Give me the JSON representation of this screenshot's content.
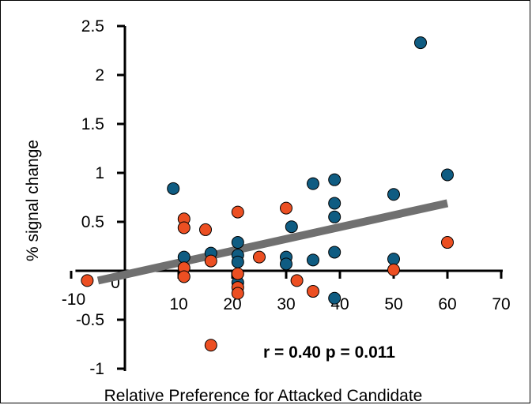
{
  "chart_data": {
    "type": "scatter",
    "title": "",
    "xlabel": "Relative Preference for Attacked Candidate",
    "ylabel": "% signal change",
    "xlim": [
      -10,
      70
    ],
    "ylim": [
      -1,
      2.5
    ],
    "xticks": [
      -10,
      0,
      10,
      20,
      30,
      40,
      50,
      60,
      70
    ],
    "xtick_labels": [
      "-10",
      "0",
      "10",
      "20",
      "30",
      "40",
      "50",
      "60",
      "70"
    ],
    "yticks": [
      -1,
      -0.5,
      0,
      0.5,
      1,
      1.5,
      2,
      2.5
    ],
    "ytick_labels": [
      "-1",
      "-0.5",
      "0",
      "0.5",
      "1",
      "1.5",
      "2",
      "2.5"
    ],
    "grid": false,
    "legend": "none",
    "annotation": "r = 0.40 p = 0.011",
    "series": [
      {
        "color": "#0f5c82",
        "points": [
          {
            "x": 9,
            "y": 0.84
          },
          {
            "x": 11,
            "y": 0.14
          },
          {
            "x": 16,
            "y": 0.18
          },
          {
            "x": 21,
            "y": 0.29
          },
          {
            "x": 21,
            "y": 0.16
          },
          {
            "x": 21,
            "y": 0.09
          },
          {
            "x": 21,
            "y": -0.12
          },
          {
            "x": 30,
            "y": 0.14
          },
          {
            "x": 30,
            "y": 0.07
          },
          {
            "x": 31,
            "y": 0.45
          },
          {
            "x": 35,
            "y": 0.11
          },
          {
            "x": 35,
            "y": 0.89
          },
          {
            "x": 39,
            "y": 0.93
          },
          {
            "x": 39,
            "y": 0.69
          },
          {
            "x": 39,
            "y": 0.55
          },
          {
            "x": 39,
            "y": 0.19
          },
          {
            "x": 39,
            "y": -0.28
          },
          {
            "x": 50,
            "y": 0.78
          },
          {
            "x": 50,
            "y": 0.12
          },
          {
            "x": 55,
            "y": 2.33
          },
          {
            "x": 60,
            "y": 0.98
          }
        ]
      },
      {
        "color": "#ec4f22",
        "points": [
          {
            "x": -7,
            "y": -0.1
          },
          {
            "x": 11,
            "y": 0.53
          },
          {
            "x": 11,
            "y": 0.44
          },
          {
            "x": 11,
            "y": 0.03
          },
          {
            "x": 11,
            "y": -0.06
          },
          {
            "x": 15,
            "y": 0.42
          },
          {
            "x": 16,
            "y": 0.1
          },
          {
            "x": 16,
            "y": -0.76
          },
          {
            "x": 21,
            "y": 0.6
          },
          {
            "x": 21,
            "y": -0.03
          },
          {
            "x": 21,
            "y": -0.17
          },
          {
            "x": 21,
            "y": -0.23
          },
          {
            "x": 25,
            "y": 0.14
          },
          {
            "x": 30,
            "y": 0.64
          },
          {
            "x": 32,
            "y": -0.1
          },
          {
            "x": 35,
            "y": -0.21
          },
          {
            "x": 50,
            "y": 0.01
          },
          {
            "x": 60,
            "y": 0.29
          }
        ]
      }
    ],
    "trendline": {
      "color": "#707070",
      "x": [
        -5,
        60
      ],
      "y": [
        -0.1,
        0.69
      ]
    }
  }
}
